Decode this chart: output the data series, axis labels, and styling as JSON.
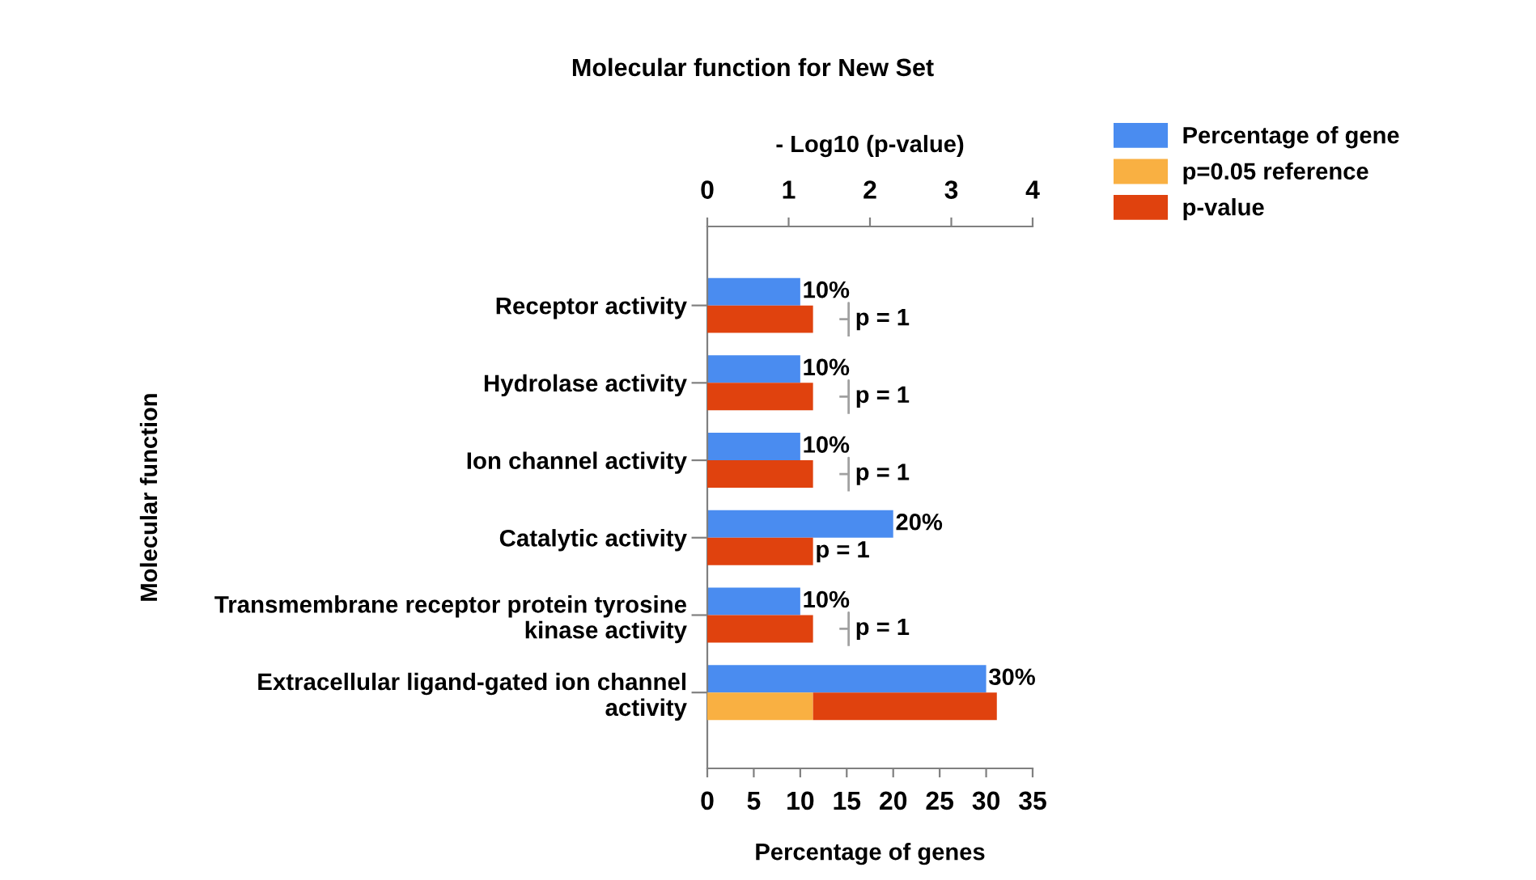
{
  "chart_data": {
    "type": "bar",
    "orientation": "horizontal",
    "title": "Molecular function for New Set",
    "xlabel": "Percentage of genes",
    "x2label": "- Log10 (p-value)",
    "ylabel": "Molecular function",
    "categories": [
      "Receptor activity",
      "Hydrolase activity",
      "Ion channel activity",
      "Catalytic activity",
      "Transmembrane receptor protein tyrosine\nkinase activity",
      "Extracellular ligand-gated ion channel\nactivity"
    ],
    "series": [
      {
        "name": "Percentage of gene",
        "color": "#4a8cf0",
        "values": [
          10,
          10,
          10,
          20,
          10,
          30
        ],
        "value_labels": [
          "10%",
          "10%",
          "10%",
          "20%",
          "10%",
          "30%"
        ]
      },
      {
        "name": "p=0.05 reference",
        "color": "#f9b042",
        "axis": "x2",
        "values": [
          null,
          null,
          null,
          null,
          null,
          1.3
        ]
      },
      {
        "name": "p-value",
        "color": "#e0420e",
        "axis": "x2",
        "base": [
          0,
          0,
          0,
          0,
          0,
          1.3
        ],
        "values": [
          1.3,
          1.3,
          1.3,
          1.3,
          1.3,
          2.26
        ],
        "value_labels": [
          "p = 1",
          "p = 1",
          "p = 1",
          "p = 1",
          "p = 1",
          null
        ]
      }
    ],
    "xlim": [
      0,
      35
    ],
    "xticks": [
      0,
      5,
      10,
      15,
      20,
      25,
      30,
      35
    ],
    "x2lim": [
      0,
      4
    ],
    "x2ticks": [
      0,
      1,
      2,
      3,
      4
    ],
    "legend": "top right"
  }
}
